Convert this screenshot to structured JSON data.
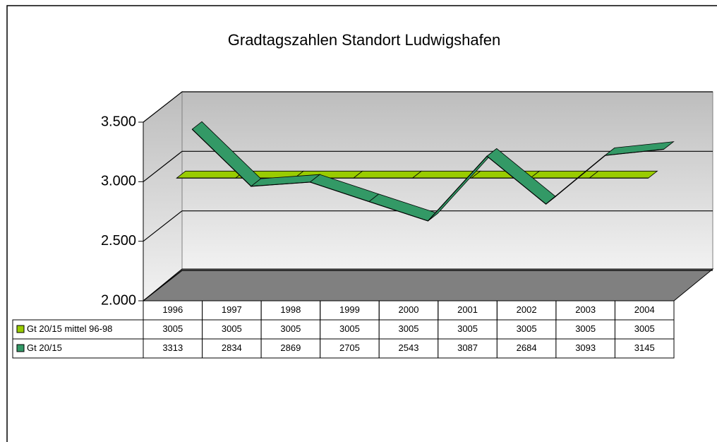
{
  "chart_data": {
    "type": "line",
    "title": "Gradtagszahlen Standort Ludwigshafen",
    "categories": [
      "1996",
      "1997",
      "1998",
      "1999",
      "2000",
      "2001",
      "2002",
      "2003",
      "2004"
    ],
    "series": [
      {
        "name": "Gt 20/15 mittel 96-98",
        "color": "#99cc00",
        "values": [
          3005,
          3005,
          3005,
          3005,
          3005,
          3005,
          3005,
          3005,
          3005
        ]
      },
      {
        "name": "Gt 20/15",
        "color": "#339966",
        "values": [
          3313,
          2834,
          2869,
          2705,
          2543,
          3087,
          2684,
          3093,
          3145
        ]
      }
    ],
    "ylim": [
      2000,
      3500
    ],
    "yticks": [
      {
        "value": 2000,
        "label": "2.000"
      },
      {
        "value": 2500,
        "label": "2.500"
      },
      {
        "value": 3000,
        "label": "3.000"
      },
      {
        "value": 3500,
        "label": "3.500"
      }
    ],
    "grid": true
  }
}
